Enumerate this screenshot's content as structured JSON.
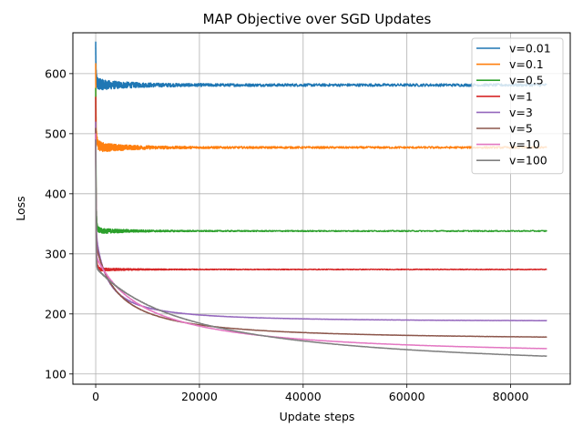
{
  "chart_data": {
    "type": "line",
    "title": "MAP Objective over SGD Updates",
    "xlabel": "Update steps",
    "ylabel": "Loss",
    "xlim": [
      -4400,
      91500
    ],
    "ylim": [
      83,
      668
    ],
    "xticks": [
      0,
      20000,
      40000,
      60000,
      80000
    ],
    "xtick_labels": [
      "0",
      "20000",
      "40000",
      "60000",
      "80000"
    ],
    "yticks": [
      100,
      200,
      300,
      400,
      500,
      600
    ],
    "ytick_labels": [
      "100",
      "200",
      "300",
      "400",
      "500",
      "600"
    ],
    "grid": true,
    "legend_position": "top-right",
    "x_max": 87000,
    "series": [
      {
        "name": "v=0.01",
        "color": "#1f77b4",
        "start": 645,
        "end": 581,
        "tau": 600,
        "noise": 10,
        "noise_tail": 2.2
      },
      {
        "name": "v=0.1",
        "color": "#ff7f0e",
        "start": 612,
        "end": 477,
        "tau": 500,
        "noise": 9,
        "noise_tail": 1.6
      },
      {
        "name": "v=0.5",
        "color": "#2ca02c",
        "start": 575,
        "end": 338,
        "tau": 250,
        "noise": 5,
        "noise_tail": 0.9
      },
      {
        "name": "v=1",
        "color": "#d62728",
        "start": 560,
        "end": 274,
        "tau": 220,
        "noise": 3,
        "noise_tail": 0.6
      },
      {
        "name": "v=3",
        "color": "#9467bd",
        "start": 520,
        "end": 188,
        "tau": 7000,
        "noise": 1,
        "noise_tail": 0.2
      },
      {
        "name": "v=5",
        "color": "#8c564b",
        "start": 510,
        "end": 158,
        "tau": 14000,
        "noise": 1,
        "noise_tail": 0.2
      },
      {
        "name": "v=10",
        "color": "#e377c2",
        "start": 500,
        "end": 131,
        "tau": 30000,
        "noise": 1,
        "noise_tail": 0.2
      },
      {
        "name": "v=100",
        "color": "#7f7f7f",
        "start": 490,
        "end": 104,
        "tau": 60000,
        "noise": 1,
        "noise_tail": 0.2
      }
    ]
  }
}
